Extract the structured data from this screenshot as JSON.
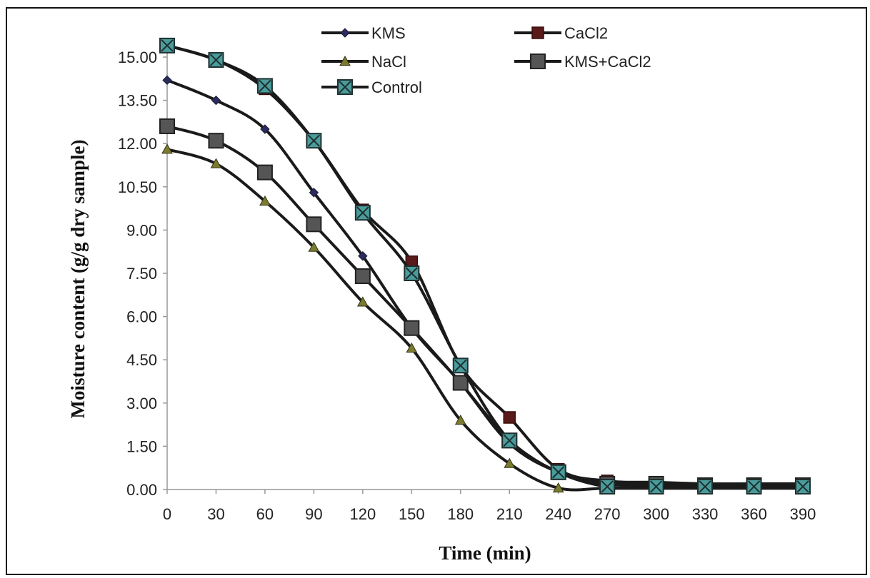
{
  "chart_data": {
    "type": "line",
    "title": "",
    "xlabel": "Time (min)",
    "ylabel": "Moisture content (g/g dry sample)",
    "xlim": [
      0,
      390
    ],
    "ylim": [
      0,
      15
    ],
    "x": [
      0,
      30,
      60,
      90,
      120,
      150,
      180,
      210,
      240,
      270,
      300,
      330,
      360,
      390
    ],
    "x_ticks": [
      "0",
      "30",
      "60",
      "90",
      "120",
      "150",
      "180",
      "210",
      "240",
      "270",
      "300",
      "330",
      "360",
      "390"
    ],
    "y_ticks": [
      0,
      1.5,
      3,
      4.5,
      6,
      7.5,
      9,
      10.5,
      12,
      13.5,
      15
    ],
    "y_tick_labels": [
      "0.00",
      "1.50",
      "3.00",
      "4.50",
      "6.00",
      "7.50",
      "9.00",
      "10.50",
      "12.00",
      "13.50",
      "15.00"
    ],
    "grid": false,
    "legend_position": "top",
    "series": [
      {
        "name": "KMS",
        "marker": "diamond",
        "color": "#2b2b5c",
        "values": [
          14.2,
          13.5,
          12.5,
          10.3,
          8.1,
          5.6,
          3.7,
          1.6,
          0.6,
          0.2,
          0.15,
          0.1,
          0.1,
          0.1
        ]
      },
      {
        "name": "CaCl2",
        "marker": "square",
        "color": "#5a1a1a",
        "values": [
          15.4,
          14.9,
          13.9,
          12.1,
          9.7,
          7.9,
          4.3,
          2.5,
          0.7,
          0.3,
          0.25,
          0.2,
          0.2,
          0.2
        ]
      },
      {
        "name": "NaCl",
        "marker": "triangle",
        "color": "#5a5a20",
        "values": [
          11.8,
          11.3,
          10.0,
          8.4,
          6.5,
          4.9,
          2.4,
          0.9,
          0.05,
          0.05,
          0.05,
          0.05,
          0.05,
          0.05
        ]
      },
      {
        "name": "KMS+CaCl2",
        "marker": "square-big",
        "color": "#333333",
        "values": [
          12.6,
          12.1,
          11.0,
          9.2,
          7.4,
          5.6,
          3.7,
          1.7,
          0.6,
          0.2,
          0.2,
          0.15,
          0.15,
          0.15
        ]
      },
      {
        "name": "Control",
        "marker": "x-box",
        "color": "#3a8a8a",
        "values": [
          15.4,
          14.9,
          14.0,
          12.1,
          9.6,
          7.5,
          4.3,
          1.7,
          0.6,
          0.1,
          0.1,
          0.1,
          0.1,
          0.1
        ]
      }
    ]
  }
}
